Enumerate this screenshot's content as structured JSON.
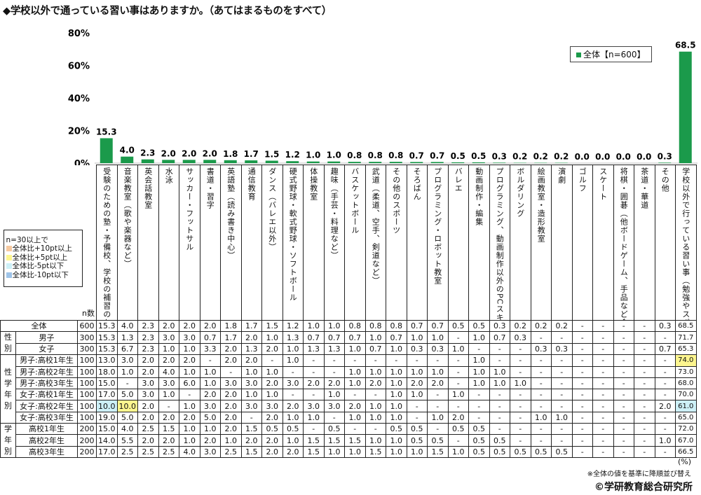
{
  "title": "◆学校以外で通っている習い事はありますか。（あてはまるものをすべて）",
  "colors": {
    "bar": "#1b9a4b",
    "plus10": "#f6c9a0",
    "plus5": "#fdf68f",
    "minus5": "#cdf0f7",
    "minus10": "#9fc4e8"
  },
  "chart_data": {
    "type": "bar",
    "title": "",
    "ylim": [
      0,
      80
    ],
    "yticks": [
      "0%",
      "20%",
      "40%",
      "60%",
      "80%"
    ],
    "grid": false,
    "legend": {
      "label": "全体【n=600】",
      "placement": "top-right"
    },
    "categories": [
      "受験のための塾・予備校、学校の補習のための塾・予備校",
      "音楽教室（歌や楽器など）",
      "英会話教室",
      "水泳",
      "サッカー・フットサル",
      "書道・習字",
      "英語塾（読み書き中心）",
      "通信教育",
      "ダンス（バレエ以外）",
      "硬式野球・軟式野球・ソフトボール",
      "体操教室",
      "趣味（手芸・料理など）",
      "バスケットボール",
      "武道（柔道、空手、剣道など）",
      "その他のスポーツ",
      "そろばん",
      "プログラミング・ロボット教室",
      "バレエ",
      "動画制作・編集",
      "プログラミング、動画制作以外のPCスキル",
      "ボルダリング",
      "絵画教室・造形教室",
      "演劇",
      "ゴルフ",
      "スケート",
      "将棋・囲碁（他ボードゲーム、手品など含む）",
      "茶道・華道",
      "その他",
      "学校以外で行っている習い事（勉強やスポーツなど）はない"
    ],
    "series": [
      {
        "name": "全体【n=600】",
        "values": [
          15.3,
          4.0,
          2.3,
          2.0,
          2.0,
          2.0,
          1.8,
          1.7,
          1.5,
          1.2,
          1.0,
          1.0,
          0.8,
          0.8,
          0.8,
          0.7,
          0.7,
          0.5,
          0.5,
          0.3,
          0.2,
          0.2,
          0.2,
          0.0,
          0.0,
          0.0,
          0.0,
          0.3,
          68.5
        ]
      }
    ],
    "value_labels": [
      "15.3",
      "4.0",
      "2.3",
      "2.0",
      "2.0",
      "2.0",
      "1.8",
      "1.7",
      "1.5",
      "1.2",
      "1.0",
      "1.0",
      "0.8",
      "0.8",
      "0.8",
      "0.7",
      "0.7",
      "0.5",
      "0.5",
      "0.3",
      "0.2",
      "0.2",
      "0.2",
      "0.0",
      "0.0",
      "0.0",
      "0.0",
      "0.3",
      "68.5"
    ]
  },
  "table": {
    "n_header": "n数",
    "highlight_legend": {
      "title": "n=30以上で",
      "items": [
        {
          "label": "全体比+10pt以上",
          "color": "#f6c9a0"
        },
        {
          "label": "全体比+5pt以上",
          "color": "#fdf68f"
        },
        {
          "label": "全体比-5pt以下",
          "color": "#cdf0f7"
        },
        {
          "label": "全体比-10pt以下",
          "color": "#9fc4e8"
        }
      ]
    },
    "groups": [
      {
        "label": "",
        "rows": [
          0
        ]
      },
      {
        "label": "性別",
        "rows": [
          1,
          2
        ]
      },
      {
        "label": "性学年別",
        "rows": [
          3,
          4,
          5,
          6,
          7,
          8
        ]
      },
      {
        "label": "学年別",
        "rows": [
          9,
          10,
          11
        ]
      }
    ],
    "rows": [
      {
        "label": "全体",
        "n": "600",
        "values": [
          "15.3",
          "4.0",
          "2.3",
          "2.0",
          "2.0",
          "2.0",
          "1.8",
          "1.7",
          "1.5",
          "1.2",
          "1.0",
          "1.0",
          "0.8",
          "0.8",
          "0.8",
          "0.7",
          "0.7",
          "0.5",
          "0.5",
          "0.3",
          "0.2",
          "0.2",
          "0.2",
          "-",
          "-",
          "-",
          "-",
          "0.3",
          "68.5"
        ]
      },
      {
        "label": "男子",
        "n": "300",
        "values": [
          "15.3",
          "1.3",
          "2.3",
          "3.0",
          "3.0",
          "0.7",
          "1.7",
          "2.0",
          "1.0",
          "1.3",
          "0.7",
          "0.7",
          "0.7",
          "1.0",
          "0.7",
          "1.0",
          "1.0",
          "-",
          "1.0",
          "0.7",
          "0.3",
          "-",
          "-",
          "-",
          "-",
          "-",
          "-",
          "-",
          "71.7"
        ]
      },
      {
        "label": "女子",
        "n": "300",
        "values": [
          "15.3",
          "6.7",
          "2.3",
          "1.0",
          "1.0",
          "3.3",
          "2.0",
          "1.3",
          "2.0",
          "1.0",
          "1.3",
          "1.3",
          "1.0",
          "0.7",
          "1.0",
          "0.3",
          "0.3",
          "1.0",
          "-",
          "-",
          "-",
          "0.3",
          "0.3",
          "-",
          "-",
          "-",
          "-",
          "0.7",
          "65.3"
        ]
      },
      {
        "label": "男子:高校1年生",
        "n": "100",
        "values": [
          "13.0",
          "3.0",
          "2.0",
          "2.0",
          "2.0",
          "-",
          "2.0",
          "2.0",
          "-",
          "1.0",
          "-",
          "-",
          "-",
          "-",
          "-",
          "-",
          "-",
          "-",
          "1.0",
          "-",
          "-",
          "-",
          "-",
          "-",
          "-",
          "-",
          "-",
          "-",
          "74.0"
        ]
      },
      {
        "label": "男子:高校2年生",
        "n": "100",
        "values": [
          "18.0",
          "1.0",
          "2.0",
          "4.0",
          "1.0",
          "1.0",
          "-",
          "1.0",
          "1.0",
          "-",
          "-",
          "-",
          "1.0",
          "1.0",
          "1.0",
          "1.0",
          "1.0",
          "-",
          "1.0",
          "1.0",
          "-",
          "-",
          "-",
          "-",
          "-",
          "-",
          "-",
          "-",
          "73.0"
        ]
      },
      {
        "label": "男子:高校3年生",
        "n": "100",
        "values": [
          "15.0",
          "-",
          "3.0",
          "3.0",
          "6.0",
          "1.0",
          "3.0",
          "3.0",
          "2.0",
          "3.0",
          "2.0",
          "2.0",
          "1.0",
          "2.0",
          "1.0",
          "2.0",
          "2.0",
          "-",
          "1.0",
          "1.0",
          "1.0",
          "-",
          "-",
          "-",
          "-",
          "-",
          "-",
          "-",
          "68.0"
        ]
      },
      {
        "label": "女子:高校1年生",
        "n": "100",
        "values": [
          "17.0",
          "5.0",
          "3.0",
          "1.0",
          "-",
          "2.0",
          "2.0",
          "1.0",
          "1.0",
          "-",
          "-",
          "1.0",
          "-",
          "-",
          "1.0",
          "1.0",
          "-",
          "1.0",
          "-",
          "-",
          "-",
          "-",
          "-",
          "-",
          "-",
          "-",
          "-",
          "-",
          "70.0"
        ]
      },
      {
        "label": "女子:高校2年生",
        "n": "100",
        "values": [
          "10.0",
          "10.0",
          "2.0",
          "-",
          "1.0",
          "3.0",
          "2.0",
          "3.0",
          "3.0",
          "2.0",
          "3.0",
          "3.0",
          "2.0",
          "1.0",
          "1.0",
          "-",
          "-",
          "-",
          "-",
          "-",
          "-",
          "-",
          "-",
          "-",
          "-",
          "-",
          "-",
          "2.0",
          "61.0"
        ]
      },
      {
        "label": "女子:高校3年生",
        "n": "100",
        "values": [
          "19.0",
          "5.0",
          "2.0",
          "2.0",
          "2.0",
          "5.0",
          "2.0",
          "-",
          "2.0",
          "1.0",
          "1.0",
          "-",
          "1.0",
          "1.0",
          "1.0",
          "-",
          "1.0",
          "2.0",
          "-",
          "-",
          "-",
          "1.0",
          "1.0",
          "-",
          "-",
          "-",
          "-",
          "-",
          "65.0"
        ]
      },
      {
        "label": "高校1年生",
        "n": "200",
        "values": [
          "15.0",
          "4.0",
          "2.5",
          "1.5",
          "1.0",
          "1.0",
          "2.0",
          "1.5",
          "0.5",
          "0.5",
          "-",
          "0.5",
          "-",
          "-",
          "0.5",
          "0.5",
          "-",
          "0.5",
          "0.5",
          "-",
          "-",
          "-",
          "-",
          "-",
          "-",
          "-",
          "-",
          "-",
          "72.0"
        ]
      },
      {
        "label": "高校2年生",
        "n": "200",
        "values": [
          "14.0",
          "5.5",
          "2.0",
          "2.0",
          "1.0",
          "2.0",
          "1.0",
          "2.0",
          "2.0",
          "1.0",
          "1.5",
          "1.5",
          "1.5",
          "1.0",
          "1.0",
          "0.5",
          "0.5",
          "-",
          "0.5",
          "0.5",
          "-",
          "-",
          "-",
          "-",
          "-",
          "-",
          "-",
          "1.0",
          "67.0"
        ]
      },
      {
        "label": "高校3年生",
        "n": "200",
        "values": [
          "17.0",
          "2.5",
          "2.5",
          "2.5",
          "4.0",
          "3.0",
          "2.5",
          "1.5",
          "2.0",
          "2.0",
          "1.5",
          "1.0",
          "1.0",
          "1.5",
          "1.0",
          "1.0",
          "1.5",
          "1.0",
          "0.5",
          "0.5",
          "0.5",
          "0.5",
          "0.5",
          "-",
          "-",
          "-",
          "-",
          "-",
          "66.5"
        ]
      }
    ],
    "highlights": [
      {
        "row": 3,
        "col": 28,
        "level": "plus5"
      },
      {
        "row": 7,
        "col": 0,
        "level": "minus5"
      },
      {
        "row": 7,
        "col": 1,
        "level": "plus5"
      },
      {
        "row": 7,
        "col": 28,
        "level": "minus5"
      }
    ]
  },
  "footer": {
    "unit": "(%)",
    "note": "※全体の値を基準に降順並び替え",
    "copyright": "©学研教育総合研究所"
  }
}
